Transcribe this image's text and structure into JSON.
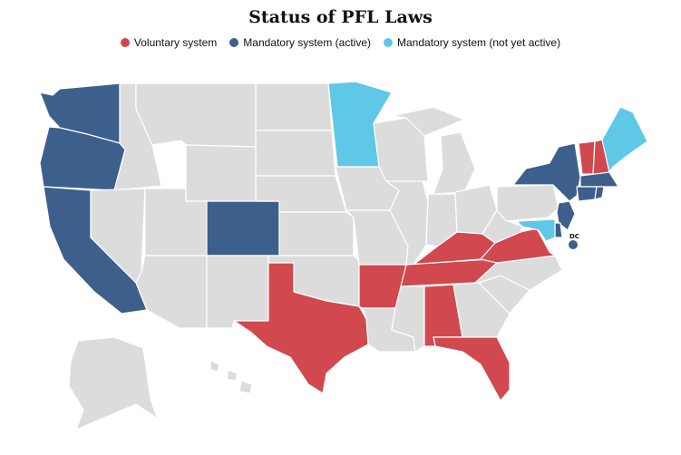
{
  "title": "Status of PFL Laws",
  "colors": {
    "voluntary": "#d1484e",
    "mandatory_active": "#3d5f8c",
    "mandatory_not_yet_active": "#5ec8e6",
    "none": "#dcdcdc"
  },
  "legend": [
    {
      "label": "Voluntary system",
      "color": "#d1484e"
    },
    {
      "label": "Mandatory system (active)",
      "color": "#3d5f8c"
    },
    {
      "label": "Mandatory system (not yet active)",
      "color": "#5ec8e6"
    }
  ],
  "dc_label": "DC",
  "states": {
    "voluntary": [
      "Texas",
      "Arkansas",
      "Alabama",
      "Florida",
      "Tennessee",
      "Kentucky",
      "Virginia",
      "New Hampshire",
      "Vermont"
    ],
    "mandatory_active": [
      "Washington",
      "Oregon",
      "California",
      "Colorado",
      "New York",
      "New Jersey",
      "Connecticut",
      "Massachusetts",
      "Rhode Island",
      "Delaware",
      "District of Columbia"
    ],
    "mandatory_not_yet_active": [
      "Minnesota",
      "Maine",
      "Maryland"
    ]
  }
}
